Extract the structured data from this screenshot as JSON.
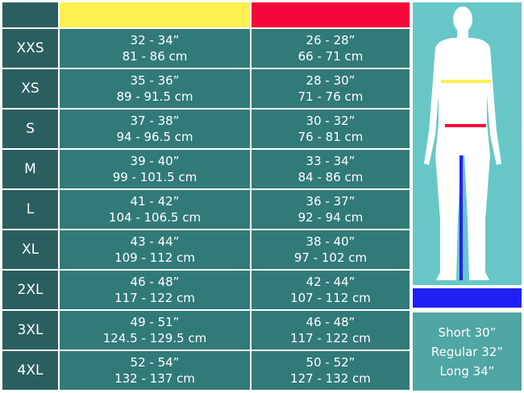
{
  "colors": {
    "chest": "#fdf050",
    "waist": "#f5073a",
    "inseam": "#2020f5",
    "size_column": "#2b5f5f",
    "cell": "#327a78",
    "figure_bg": "#67c7c7"
  },
  "rows": [
    {
      "size": "XXS",
      "chest_in": "32 - 34”",
      "chest_cm": "81 - 86 cm",
      "waist_in": "26 - 28”",
      "waist_cm": "66 - 71 cm"
    },
    {
      "size": "XS",
      "chest_in": "35 - 36”",
      "chest_cm": "89 - 91.5 cm",
      "waist_in": "28 - 30”",
      "waist_cm": "71 - 76 cm"
    },
    {
      "size": "S",
      "chest_in": "37 - 38”",
      "chest_cm": "94 - 96.5 cm",
      "waist_in": "30 - 32”",
      "waist_cm": "76 - 81 cm"
    },
    {
      "size": "M",
      "chest_in": "39 - 40”",
      "chest_cm": "99 - 101.5 cm",
      "waist_in": "33 - 34”",
      "waist_cm": "84 - 86 cm"
    },
    {
      "size": "L",
      "chest_in": "41 - 42”",
      "chest_cm": "104 - 106.5 cm",
      "waist_in": "36 - 37”",
      "waist_cm": "92 - 94 cm"
    },
    {
      "size": "XL",
      "chest_in": "43 - 44”",
      "chest_cm": "109 - 112 cm",
      "waist_in": "38 - 40”",
      "waist_cm": "97 - 102 cm"
    },
    {
      "size": "2XL",
      "chest_in": "46 - 48”",
      "chest_cm": "117 - 122 cm",
      "waist_in": "42 - 44”",
      "waist_cm": "107 - 112 cm"
    },
    {
      "size": "3XL",
      "chest_in": "49 - 51”",
      "chest_cm": "124.5 - 129.5 cm",
      "waist_in": "46 - 48”",
      "waist_cm": "117 - 122 cm"
    },
    {
      "size": "4XL",
      "chest_in": "52 - 54”",
      "chest_cm": "132 - 137 cm",
      "waist_in": "50 - 52”",
      "waist_cm": "127 - 132 cm"
    }
  ],
  "inseam": [
    "Short 30”",
    "Regular 32”",
    "Long 34”"
  ]
}
